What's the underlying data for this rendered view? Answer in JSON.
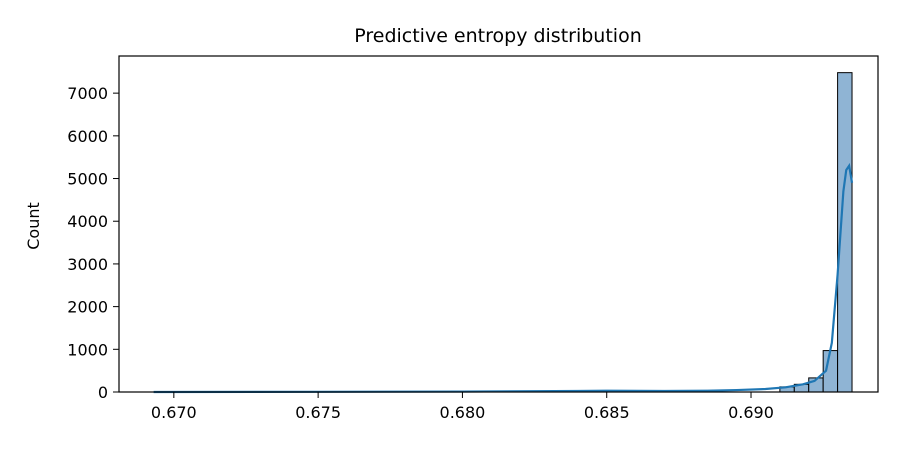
{
  "chart_data": {
    "type": "bar",
    "title": "Predictive entropy distribution",
    "xlabel": "",
    "ylabel": "Count",
    "xlim": [
      0.6681,
      0.6944
    ],
    "ylim": [
      0,
      7870
    ],
    "x_ticks": [
      0.67,
      0.675,
      0.68,
      0.685,
      0.69
    ],
    "x_tick_labels": [
      "0.670",
      "0.675",
      "0.680",
      "0.685",
      "0.690"
    ],
    "y_ticks": [
      0,
      1000,
      2000,
      3000,
      4000,
      5000,
      6000,
      7000
    ],
    "y_tick_labels": [
      "0",
      "1000",
      "2000",
      "3000",
      "4000",
      "5000",
      "6000",
      "7000"
    ],
    "bin_width": 0.0005,
    "bins": [
      {
        "x0": 0.691,
        "x1": 0.6915,
        "count": 120
      },
      {
        "x0": 0.6915,
        "x1": 0.692,
        "count": 180
      },
      {
        "x0": 0.692,
        "x1": 0.6925,
        "count": 330
      },
      {
        "x0": 0.6925,
        "x1": 0.693,
        "count": 970
      },
      {
        "x0": 0.693,
        "x1": 0.6935,
        "count": 7480
      }
    ],
    "kde": {
      "x": [
        0.6693,
        0.675,
        0.68,
        0.684,
        0.685,
        0.687,
        0.6885,
        0.6895,
        0.6905,
        0.6912,
        0.6918,
        0.6922,
        0.6926,
        0.6928,
        0.693,
        0.6932,
        0.6933,
        0.6934,
        0.6935
      ],
      "y": [
        0,
        5,
        10,
        25,
        30,
        25,
        30,
        45,
        70,
        110,
        180,
        260,
        500,
        1150,
        2750,
        4700,
        5200,
        5300,
        4900
      ]
    },
    "colors": {
      "bar_fill": "#8fb4d4",
      "bar_edge": "#000000",
      "kde_line": "#1f77b4"
    },
    "grid": false
  }
}
